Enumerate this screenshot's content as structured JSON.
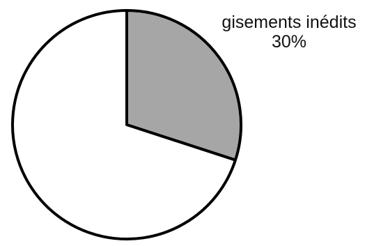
{
  "chart_data": {
    "type": "pie",
    "slices": [
      {
        "label": "gisements inédits",
        "value": 30,
        "display_value": "30%",
        "color": "#a6a6a6",
        "labeled": true
      },
      {
        "label": "",
        "value": 70,
        "display_value": "",
        "color": "#ffffff",
        "labeled": false
      }
    ],
    "start_angle_deg": 0,
    "direction": "clockwise",
    "outline_color": "#000000",
    "title": "",
    "legend": "none"
  }
}
